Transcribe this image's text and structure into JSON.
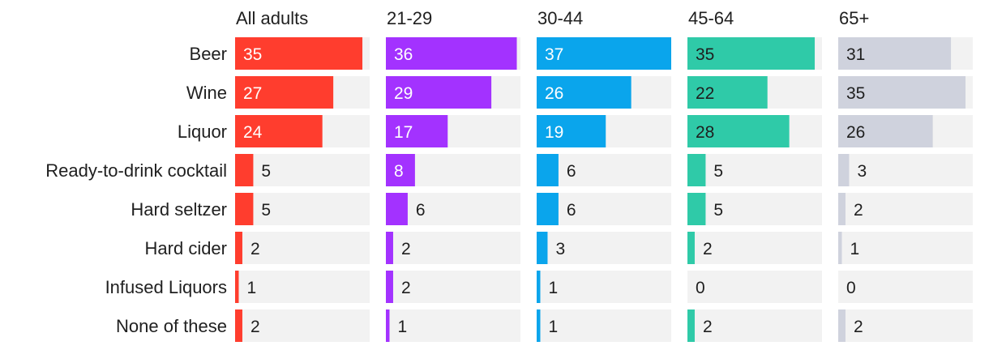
{
  "chart_data": {
    "type": "bar",
    "categories": [
      "Beer",
      "Wine",
      "Liquor",
      "Ready-to-drink cocktail",
      "Hard seltzer",
      "Hard cider",
      "Infused Liquors",
      "None of these"
    ],
    "series": [
      {
        "name": "All adults",
        "color": "#ff3d2e",
        "values": [
          35,
          27,
          24,
          5,
          5,
          2,
          1,
          2
        ]
      },
      {
        "name": "21-29",
        "color": "#a332ff",
        "values": [
          36,
          29,
          17,
          8,
          6,
          2,
          2,
          1
        ]
      },
      {
        "name": "30-44",
        "color": "#0aa5ec",
        "values": [
          37,
          26,
          19,
          6,
          6,
          3,
          1,
          1
        ]
      },
      {
        "name": "45-64",
        "color": "#2fcaa8",
        "values": [
          35,
          22,
          28,
          5,
          5,
          2,
          0,
          2
        ]
      },
      {
        "name": "65+",
        "color": "#cfd2dd",
        "values": [
          31,
          35,
          26,
          3,
          2,
          1,
          0,
          2
        ]
      }
    ],
    "xlim": [
      0,
      37
    ],
    "background_color": "#f2f2f2",
    "title": "",
    "xlabel": "",
    "ylabel": ""
  }
}
